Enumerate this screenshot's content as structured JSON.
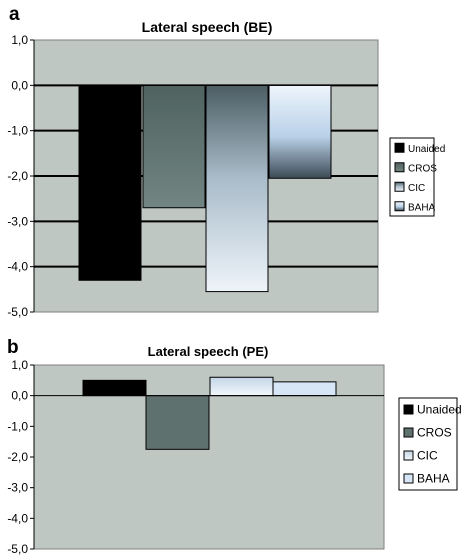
{
  "chart_data": [
    {
      "panel_label": "a",
      "type": "bar",
      "title": "Lateral speech (BE)",
      "xlabel": "",
      "ylabel": "",
      "ylim": [
        -5.0,
        1.0
      ],
      "yticks": [
        "1,0",
        "0,0",
        "-1,0",
        "-2,0",
        "-3,0",
        "-4,0",
        "-5,0"
      ],
      "grid": true,
      "legend_position": "right",
      "categories": [
        ""
      ],
      "series": [
        {
          "name": "Unaided",
          "values": [
            -4.3
          ],
          "color": "#000000"
        },
        {
          "name": "CROS",
          "values": [
            -2.7
          ],
          "color": "#5f716e"
        },
        {
          "name": "CIC",
          "values": [
            -4.55
          ],
          "color": "#dde8f3"
        },
        {
          "name": "BAHA",
          "values": [
            -2.05
          ],
          "color": "#d6e6f6"
        }
      ],
      "plot_background": "#bfc7c3"
    },
    {
      "panel_label": "b",
      "type": "bar",
      "title": "Lateral speech (PE)",
      "xlabel": "",
      "ylabel": "",
      "ylim": [
        -5.0,
        1.0
      ],
      "yticks": [
        "1,0",
        "0,0",
        "-1,0",
        "-2,0",
        "-3,0",
        "-4,0",
        "-5,0"
      ],
      "grid": false,
      "legend_position": "right",
      "categories": [
        ""
      ],
      "series": [
        {
          "name": "Unaided",
          "values": [
            0.5
          ],
          "color": "#000000"
        },
        {
          "name": "CROS",
          "values": [
            -1.75
          ],
          "color": "#5f716e"
        },
        {
          "name": "CIC",
          "values": [
            0.6
          ],
          "color": "#dde8f3"
        },
        {
          "name": "BAHA",
          "values": [
            0.45
          ],
          "color": "#d6e6f6"
        }
      ],
      "plot_background": "#bfc7c3"
    }
  ]
}
